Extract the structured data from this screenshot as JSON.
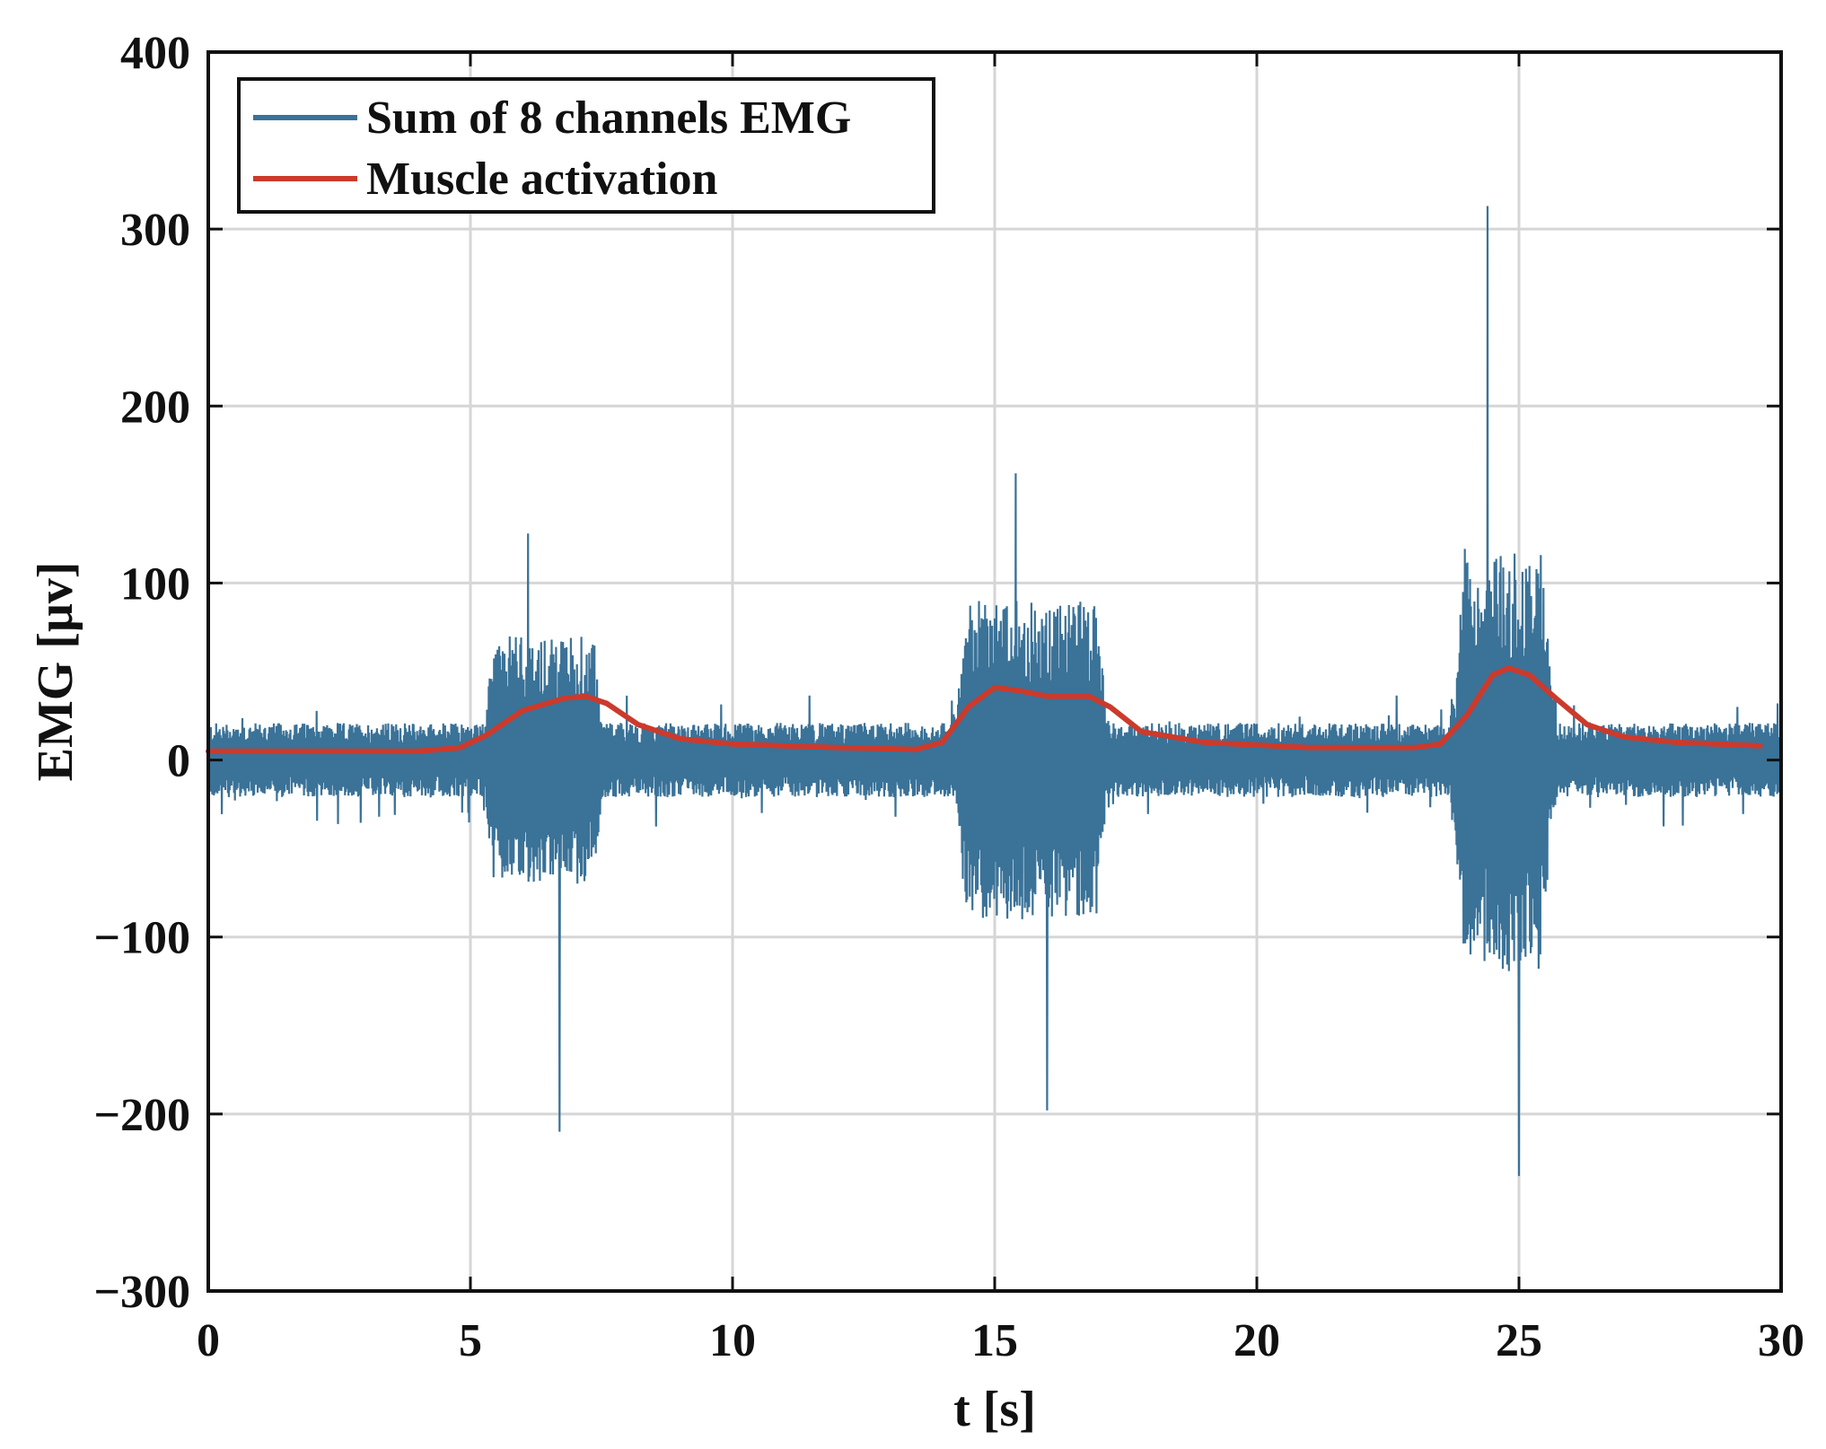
{
  "chart_data": {
    "type": "line",
    "title": "",
    "xlabel": "t [s]",
    "ylabel": "EMG [μv]",
    "xlim": [
      0,
      30
    ],
    "ylim": [
      -300,
      400
    ],
    "xticks": [
      0,
      5,
      10,
      15,
      20,
      25,
      30
    ],
    "yticks": [
      -300,
      -200,
      -100,
      0,
      100,
      200,
      300,
      400
    ],
    "xtick_labels": [
      "0",
      "5",
      "10",
      "15",
      "20",
      "25",
      "30"
    ],
    "ytick_labels": [
      "−300",
      "−200",
      "−100",
      "0",
      "100",
      "200",
      "300",
      "400"
    ],
    "grid": true,
    "legend_position": "top-left",
    "series": [
      {
        "name": "Sum of 8 channels EMG",
        "color": "#3a7298",
        "style": "raw-signal",
        "baseline_amplitude": 15,
        "bursts": [
          {
            "start": 5.2,
            "end": 7.6,
            "typical_max": 70,
            "typical_min": -70,
            "peak_max": 128,
            "peak_min": -210
          },
          {
            "start": 14.2,
            "end": 17.2,
            "typical_max": 90,
            "typical_min": -90,
            "peak_max": 162,
            "peak_min": -198
          },
          {
            "start": 23.7,
            "end": 25.7,
            "typical_max": 120,
            "typical_min": -120,
            "peak_max": 313,
            "peak_min": -235
          }
        ]
      },
      {
        "name": "Muscle activation",
        "color": "#cc3a2c",
        "style": "envelope",
        "x": [
          0,
          4.0,
          4.8,
          5.3,
          6.0,
          6.8,
          7.2,
          7.6,
          8.2,
          9.0,
          10.0,
          12.0,
          13.5,
          14.0,
          14.5,
          15.0,
          15.5,
          16.0,
          16.8,
          17.2,
          17.8,
          19.0,
          21.0,
          23.0,
          23.5,
          24.0,
          24.5,
          24.8,
          25.2,
          25.7,
          26.3,
          27.0,
          28.0,
          29.6
        ],
        "y": [
          5,
          5,
          7,
          14,
          28,
          35,
          36,
          32,
          20,
          12,
          9,
          7,
          6,
          10,
          30,
          41,
          39,
          36,
          36,
          30,
          16,
          10,
          7,
          7,
          9,
          25,
          48,
          52,
          48,
          35,
          20,
          13,
          10,
          8
        ]
      }
    ]
  }
}
